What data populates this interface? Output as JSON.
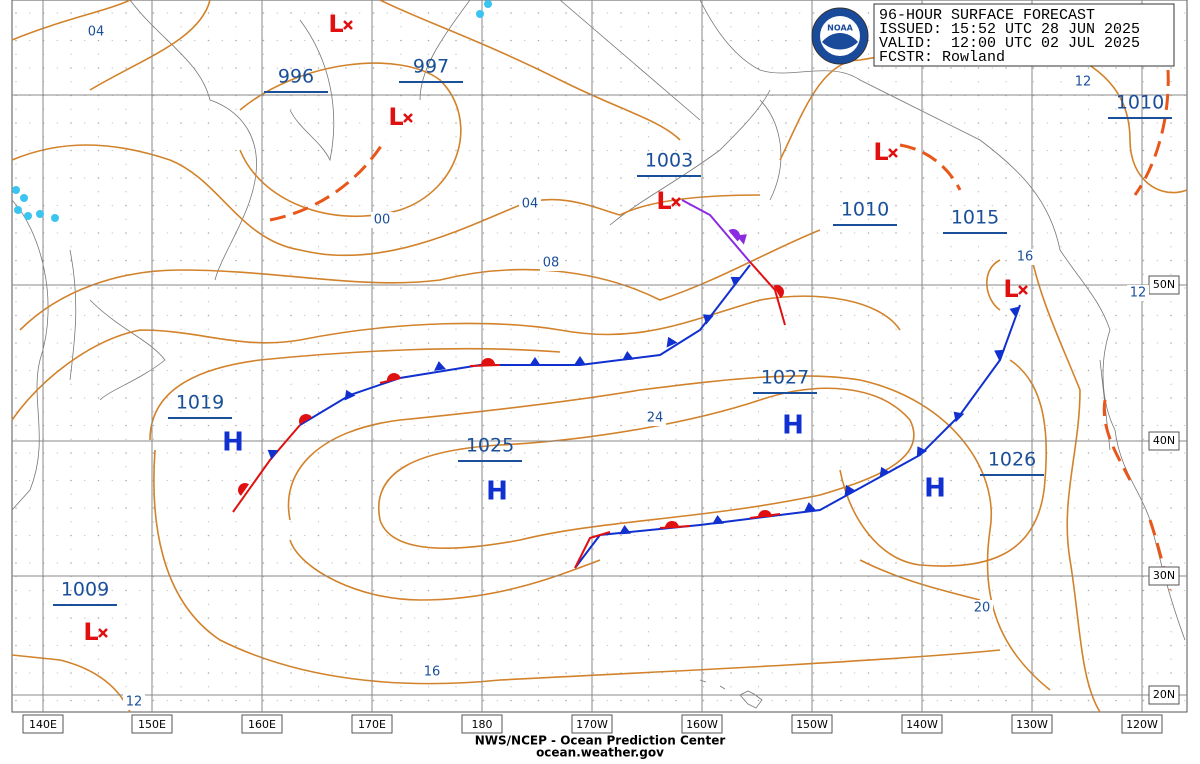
{
  "header": {
    "lines": [
      "96-HOUR SURFACE FORECAST",
      "ISSUED: 15:52 UTC 28 JUN 2025",
      "VALID:  12:00 UTC 02 JUL 2025",
      "FCSTR: Rowland"
    ]
  },
  "logo": "NOAA",
  "pressure_labels": [
    "996",
    "997",
    "1003",
    "1010",
    "1015",
    "1010",
    "1019",
    "1025",
    "1027",
    "1026",
    "1009"
  ],
  "isobar_labels": [
    "04",
    "00",
    "04",
    "08",
    "24",
    "16",
    "12",
    "20",
    "16",
    "12",
    "12"
  ],
  "highs": [
    "H",
    "H",
    "H",
    "H"
  ],
  "lows": [
    "L",
    "L",
    "L",
    "L",
    "L",
    "L"
  ],
  "longitudes": [
    "140E",
    "150E",
    "160E",
    "170E",
    "180",
    "170W",
    "160W",
    "150W",
    "140W",
    "130W",
    "120W"
  ],
  "latitudes": [
    "50N",
    "40N",
    "30N",
    "20N"
  ],
  "footer": [
    "NWS/NCEP - Ocean Prediction Center",
    "ocean.weather.gov"
  ]
}
